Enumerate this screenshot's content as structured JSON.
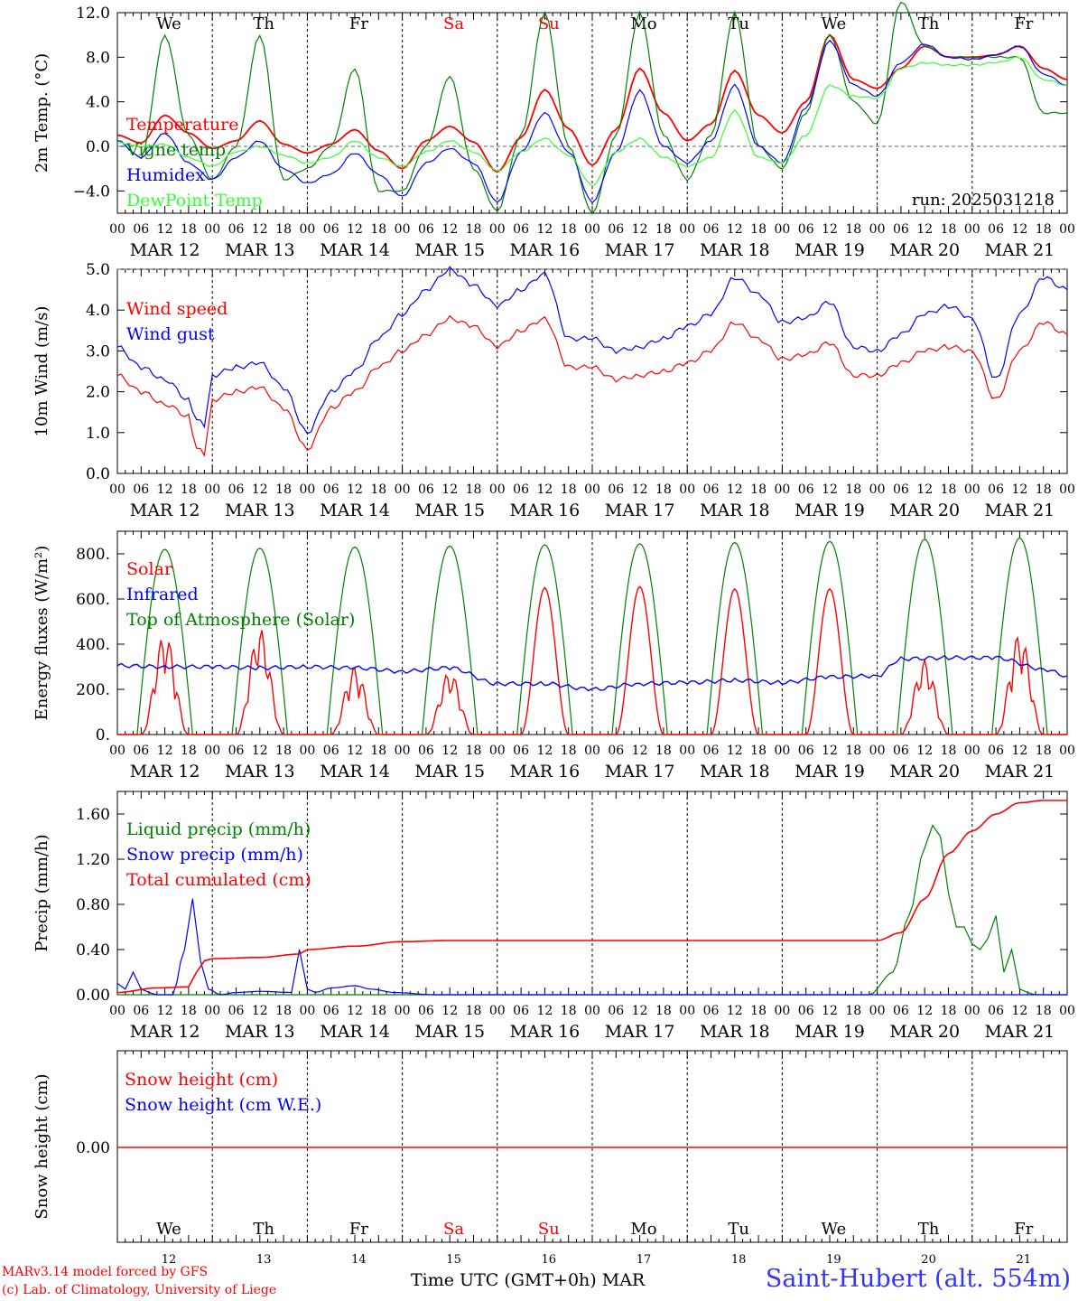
{
  "station": "Saint-Hubert (alt. 554m)",
  "credits": [
    "MARv3.14 model forced by GFS",
    "(c) Lab. of Climatology, University of Liege"
  ],
  "run_label": "run: 2025031218",
  "x_axis": {
    "hour_ticks": [
      "00",
      "06",
      "12",
      "18"
    ],
    "date_labels": [
      "MAR 12",
      "MAR 13",
      "MAR 14",
      "MAR 15",
      "MAR 16",
      "MAR 17",
      "MAR 18",
      "MAR 19",
      "MAR 20",
      "MAR 21"
    ],
    "bottom_days": [
      "12",
      "13",
      "14",
      "15",
      "16",
      "17",
      "18",
      "19",
      "20",
      "21"
    ],
    "bottom_title": "Time UTC (GMT+0h)",
    "bottom_month": "MAR"
  },
  "weekdays": [
    {
      "label": "We",
      "color": "#000000"
    },
    {
      "label": "Th",
      "color": "#000000"
    },
    {
      "label": "Fr",
      "color": "#000000"
    },
    {
      "label": "Sa",
      "color": "#ff0000"
    },
    {
      "label": "Su",
      "color": "#ff0000"
    },
    {
      "label": "Mo",
      "color": "#000000"
    },
    {
      "label": "Tu",
      "color": "#000000"
    },
    {
      "label": "We",
      "color": "#000000"
    },
    {
      "label": "Th",
      "color": "#000000"
    },
    {
      "label": "Fr",
      "color": "#000000"
    }
  ],
  "chart_data": [
    {
      "type": "line",
      "ylabel": "2m Temp. (°C)",
      "ylim": [
        -6.0,
        12.0
      ],
      "yticks": [
        -4.0,
        0.0,
        4.0,
        8.0,
        12.0
      ],
      "ytick_labels": [
        "−4.0",
        "0.0",
        "4.0",
        "8.0",
        "12.0"
      ],
      "ref_line": 0.0,
      "series": [
        {
          "name": "Temperature",
          "color": "#ff0000",
          "x": [
            0,
            6,
            12,
            18,
            24,
            30,
            36,
            42,
            48,
            54,
            60,
            66,
            72,
            78,
            84,
            90,
            96,
            102,
            108,
            114,
            120,
            126,
            132,
            138,
            144,
            150,
            156,
            162,
            168,
            174,
            180,
            186,
            192,
            198,
            204,
            210,
            216,
            222,
            228,
            234,
            240
          ],
          "values": [
            1.0,
            0.3,
            2.8,
            1.2,
            -0.2,
            0.5,
            2.3,
            0.2,
            -0.6,
            0.2,
            1.5,
            -0.4,
            -2.0,
            0.5,
            1.8,
            0.4,
            -2.3,
            0.8,
            5.1,
            1.6,
            -1.7,
            1.5,
            7.0,
            3.0,
            0.5,
            2.0,
            6.8,
            2.8,
            1.2,
            4.0,
            10.0,
            6.0,
            5.2,
            7.0,
            9.0,
            8.0,
            8.0,
            8.2,
            9.0,
            7.0,
            6.0
          ]
        },
        {
          "name": "Vigne temp",
          "color": "#008000",
          "x": [
            0,
            6,
            12,
            18,
            24,
            30,
            36,
            42,
            48,
            54,
            60,
            66,
            72,
            78,
            84,
            90,
            96,
            102,
            108,
            114,
            120,
            126,
            132,
            138,
            144,
            150,
            156,
            162,
            168,
            174,
            180,
            186,
            192,
            198,
            204,
            210,
            216,
            222,
            228,
            234,
            240
          ],
          "values": [
            0.5,
            -1.0,
            10.0,
            1.0,
            -3.0,
            0.0,
            10.0,
            -3.0,
            -2.0,
            0.0,
            7.0,
            -4.0,
            -4.0,
            0.0,
            6.3,
            -2.0,
            -5.8,
            1.0,
            12.0,
            0.0,
            -6.0,
            1.0,
            12.0,
            1.0,
            -3.0,
            1.0,
            12.0,
            0.0,
            -2.0,
            3.0,
            10.0,
            4.0,
            2.0,
            13.0,
            9.0,
            8.0,
            8.0,
            8.0,
            8.0,
            3.0,
            3.0
          ]
        },
        {
          "name": "Humidex",
          "color": "#0000ff",
          "x": [
            0,
            6,
            12,
            18,
            24,
            30,
            36,
            42,
            48,
            54,
            60,
            66,
            72,
            78,
            84,
            90,
            96,
            102,
            108,
            114,
            120,
            126,
            132,
            138,
            144,
            150,
            156,
            162,
            168,
            174,
            180,
            186,
            192,
            198,
            204,
            210,
            216,
            222,
            228,
            234,
            240
          ],
          "values": [
            0.5,
            -1.0,
            1.2,
            -1.5,
            -3.0,
            -1.0,
            0.5,
            -2.0,
            -3.3,
            -2.5,
            -0.6,
            -2.5,
            -4.5,
            -1.5,
            -0.2,
            -1.5,
            -5.0,
            -0.5,
            3.0,
            -0.5,
            -5.0,
            -0.5,
            5.0,
            0.0,
            -1.5,
            0.5,
            5.5,
            0.0,
            -1.5,
            3.5,
            9.5,
            5.5,
            4.5,
            7.5,
            9.2,
            8.0,
            7.8,
            8.2,
            9.0,
            6.5,
            5.5
          ]
        },
        {
          "name": "DewPoint Temp",
          "color": "#33ff33",
          "x": [
            0,
            6,
            12,
            18,
            24,
            30,
            36,
            42,
            48,
            54,
            60,
            66,
            72,
            78,
            84,
            90,
            96,
            102,
            108,
            114,
            120,
            126,
            132,
            138,
            144,
            150,
            156,
            162,
            168,
            174,
            180,
            186,
            192,
            198,
            204,
            210,
            216,
            222,
            228,
            234,
            240
          ],
          "values": [
            0.3,
            0.0,
            0.2,
            -1.0,
            -1.8,
            -0.5,
            0.0,
            -0.8,
            -1.5,
            -1.0,
            0.5,
            -1.0,
            -1.8,
            -0.5,
            0.5,
            -0.5,
            -2.2,
            -0.5,
            0.7,
            -0.8,
            -3.5,
            -0.5,
            0.7,
            -1.0,
            -1.8,
            -1.0,
            3.2,
            -1.0,
            -1.5,
            1.0,
            5.5,
            4.5,
            4.3,
            7.0,
            7.5,
            7.3,
            7.3,
            7.5,
            8.0,
            6.0,
            5.5
          ]
        }
      ]
    },
    {
      "type": "line",
      "ylabel": "10m Wind (m/s)",
      "ylim": [
        0.0,
        5.0
      ],
      "yticks": [
        0.0,
        1.0,
        2.0,
        3.0,
        4.0,
        5.0
      ],
      "ytick_labels": [
        "0.0",
        "1.0",
        "2.0",
        "3.0",
        "4.0",
        "5.0"
      ],
      "ref_line": 5.0,
      "series": [
        {
          "name": "Wind speed",
          "color": "#ff0000",
          "x": [
            0,
            6,
            12,
            18,
            20,
            22,
            24,
            30,
            36,
            42,
            48,
            54,
            60,
            66,
            72,
            78,
            84,
            90,
            96,
            102,
            108,
            114,
            120,
            126,
            132,
            138,
            144,
            150,
            156,
            162,
            168,
            174,
            180,
            186,
            192,
            198,
            204,
            210,
            216,
            222,
            228,
            234,
            240
          ],
          "values": [
            2.4,
            2.0,
            1.7,
            1.4,
            0.6,
            0.5,
            1.8,
            2.0,
            2.1,
            1.6,
            0.6,
            1.6,
            2.0,
            2.6,
            3.0,
            3.4,
            3.8,
            3.6,
            3.1,
            3.5,
            3.8,
            2.6,
            2.6,
            2.3,
            2.4,
            2.5,
            2.7,
            3.0,
            3.7,
            3.3,
            2.8,
            2.9,
            3.2,
            2.4,
            2.4,
            2.7,
            3.0,
            3.1,
            3.0,
            1.8,
            3.0,
            3.7,
            3.4
          ]
        },
        {
          "name": "Wind gust",
          "color": "#0000ff",
          "x": [
            0,
            6,
            12,
            18,
            20,
            22,
            24,
            30,
            36,
            42,
            48,
            54,
            60,
            66,
            72,
            78,
            84,
            90,
            96,
            102,
            108,
            114,
            120,
            126,
            132,
            138,
            144,
            150,
            156,
            162,
            168,
            174,
            180,
            186,
            192,
            198,
            204,
            210,
            216,
            222,
            228,
            234,
            240
          ],
          "values": [
            3.1,
            2.6,
            2.3,
            1.8,
            1.3,
            1.2,
            2.4,
            2.6,
            2.7,
            2.1,
            1.0,
            2.0,
            2.5,
            3.3,
            3.9,
            4.5,
            5.0,
            4.6,
            4.1,
            4.5,
            4.9,
            3.3,
            3.3,
            3.0,
            3.1,
            3.3,
            3.6,
            3.9,
            4.8,
            4.4,
            3.7,
            3.8,
            4.2,
            3.1,
            3.0,
            3.4,
            3.9,
            4.1,
            3.8,
            2.3,
            3.9,
            4.8,
            4.5
          ]
        }
      ]
    },
    {
      "type": "line",
      "ylabel": "Energy fluxes (W/m²)",
      "ylim": [
        0,
        900
      ],
      "yticks": [
        0,
        200,
        400,
        600,
        800
      ],
      "ytick_labels": [
        "0.",
        "200.",
        "400.",
        "600.",
        "800."
      ],
      "series": [
        {
          "name": "Solar",
          "color": "#ff0000",
          "peaks": [
            450,
            470,
            300,
            280,
            650,
            655,
            645,
            645,
            330,
            450
          ]
        },
        {
          "name": "Infrared",
          "color": "#0000ff",
          "x": [
            0,
            12,
            24,
            36,
            48,
            60,
            72,
            84,
            96,
            108,
            120,
            132,
            144,
            156,
            168,
            180,
            192,
            198,
            210,
            222,
            234,
            240
          ],
          "values": [
            305,
            300,
            300,
            295,
            300,
            295,
            280,
            295,
            225,
            225,
            200,
            225,
            230,
            240,
            230,
            255,
            260,
            335,
            340,
            340,
            290,
            260
          ]
        },
        {
          "name": "Top of Atmosphere (Solar)",
          "color": "#008000",
          "peaks": [
            820,
            825,
            830,
            835,
            840,
            845,
            850,
            855,
            865,
            870
          ]
        }
      ]
    },
    {
      "type": "line",
      "ylabel": "Precip (mm/h)",
      "ylim": [
        0.0,
        1.8
      ],
      "yticks": [
        0.0,
        0.4,
        0.8,
        1.2,
        1.6
      ],
      "ytick_labels": [
        "0.00",
        "0.40",
        "0.80",
        "1.20",
        "1.60"
      ],
      "series": [
        {
          "name": "Liquid precip (mm/h)",
          "color": "#008000",
          "x": [
            0,
            190,
            196,
            200,
            204,
            206,
            208,
            210,
            212,
            214,
            216,
            218,
            220,
            222,
            224,
            226,
            228,
            230,
            232,
            234,
            240
          ],
          "values": [
            0,
            0,
            0.2,
            0.7,
            1.3,
            1.5,
            1.4,
            0.9,
            0.6,
            0.6,
            0.45,
            0.4,
            0.5,
            0.7,
            0.2,
            0.4,
            0.05,
            0.02,
            0,
            0,
            0
          ]
        },
        {
          "name": "Snow precip (mm/h)",
          "color": "#0000ff",
          "x": [
            0,
            2,
            4,
            6,
            8,
            10,
            14,
            17,
            19,
            21,
            23,
            26,
            30,
            36,
            44,
            46,
            48,
            50,
            54,
            60,
            64,
            70,
            80,
            240
          ],
          "values": [
            0.1,
            0.05,
            0.2,
            0.05,
            0.02,
            0,
            0,
            0.4,
            0.85,
            0.3,
            0.05,
            0,
            0.02,
            0.03,
            0.02,
            0.4,
            0.05,
            0.02,
            0.06,
            0.08,
            0.05,
            0.02,
            0,
            0
          ]
        },
        {
          "name": "Total cumulated (cm)",
          "color": "#ff0000",
          "x": [
            0,
            10,
            18,
            20,
            22,
            24,
            36,
            46,
            48,
            60,
            72,
            84,
            96,
            120,
            144,
            168,
            192,
            198,
            204,
            210,
            216,
            222,
            228,
            234,
            240
          ],
          "values": [
            0.02,
            0.06,
            0.07,
            0.2,
            0.3,
            0.32,
            0.33,
            0.36,
            0.4,
            0.43,
            0.47,
            0.48,
            0.48,
            0.48,
            0.48,
            0.48,
            0.48,
            0.55,
            0.85,
            1.25,
            1.45,
            1.6,
            1.7,
            1.72,
            1.72
          ]
        }
      ]
    },
    {
      "type": "line",
      "ylabel": "Snow height (cm)",
      "yticks": [
        0.0
      ],
      "ytick_labels": [
        "0.00"
      ],
      "series": [
        {
          "name": "Snow height (cm)",
          "color": "#ff0000",
          "x": [
            0,
            240
          ],
          "values": [
            0,
            0
          ]
        },
        {
          "name": "Snow height (cm W.E.)",
          "color": "#0000ff",
          "x": [
            0,
            240
          ],
          "values": [
            0,
            0
          ]
        }
      ]
    }
  ]
}
